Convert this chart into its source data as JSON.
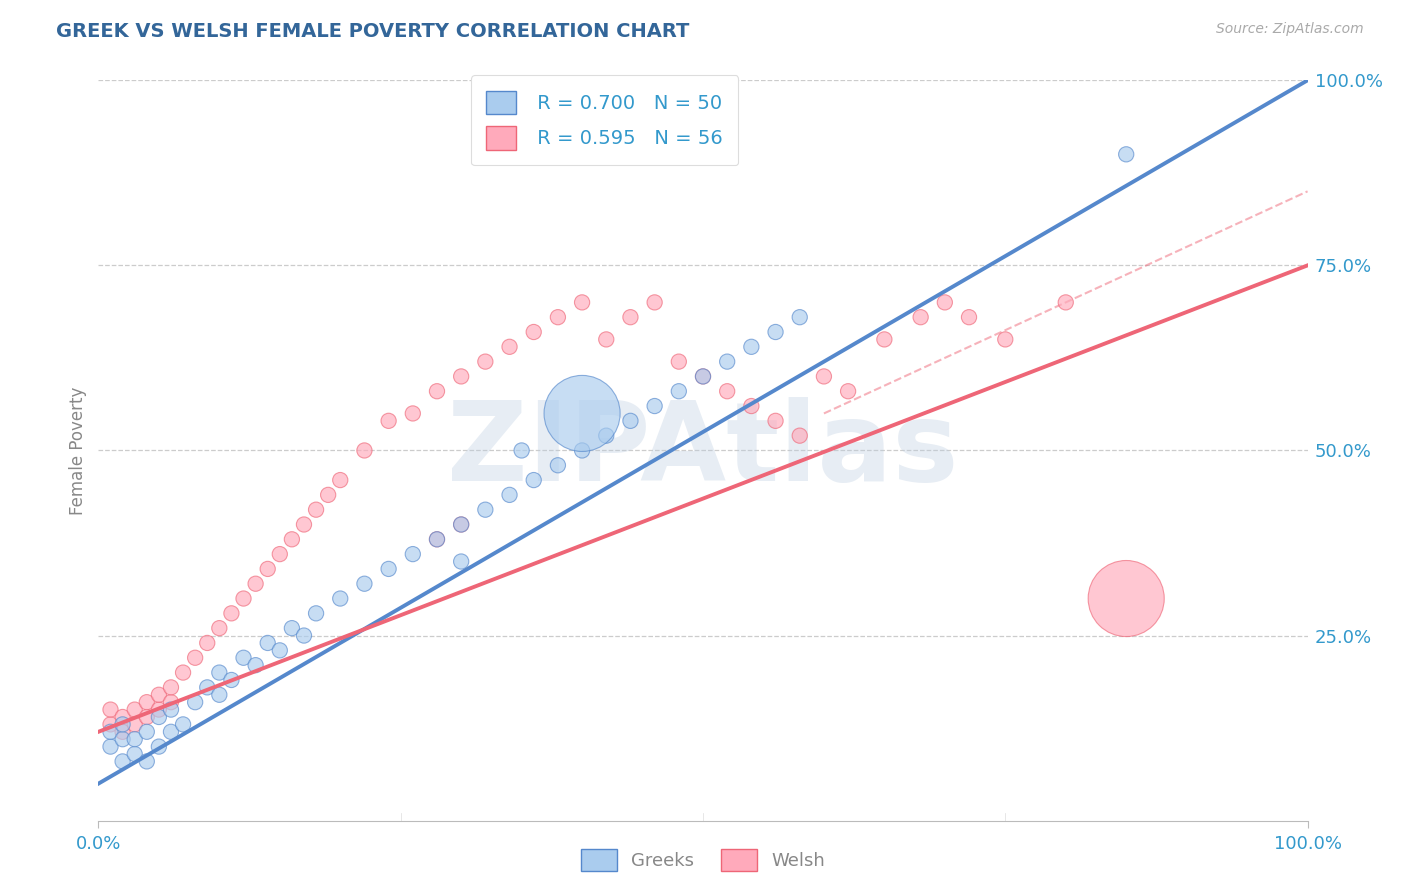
{
  "title": "GREEK VS WELSH FEMALE POVERTY CORRELATION CHART",
  "source": "Source: ZipAtlas.com",
  "ylabel": "Female Poverty",
  "watermark": "ZIPAtlas",
  "legend_blue_label": "Greeks",
  "legend_pink_label": "Welsh",
  "R_blue": 0.7,
  "N_blue": 50,
  "R_pink": 0.595,
  "N_pink": 56,
  "blue_color": "#5588CC",
  "pink_color": "#EE6677",
  "blue_fill": "#AACCEE",
  "pink_fill": "#FFAABB",
  "title_color": "#336699",
  "axis_label_color": "#888888",
  "tick_color": "#3399CC",
  "watermark_color": "#BBCCE0",
  "background_color": "#FFFFFF",
  "xlim": [
    0.0,
    1.0
  ],
  "ylim": [
    0.0,
    1.0
  ],
  "blue_line": [
    0.0,
    0.05,
    1.0,
    1.0
  ],
  "pink_line": [
    0.0,
    0.12,
    1.0,
    0.75
  ],
  "pink_dash_line": [
    0.6,
    0.55,
    1.0,
    0.85
  ],
  "greek_x": [
    0.01,
    0.01,
    0.02,
    0.02,
    0.02,
    0.03,
    0.03,
    0.04,
    0.04,
    0.05,
    0.05,
    0.06,
    0.06,
    0.07,
    0.08,
    0.09,
    0.1,
    0.1,
    0.11,
    0.12,
    0.13,
    0.14,
    0.15,
    0.16,
    0.17,
    0.18,
    0.2,
    0.22,
    0.24,
    0.26,
    0.28,
    0.3,
    0.32,
    0.34,
    0.36,
    0.38,
    0.4,
    0.42,
    0.44,
    0.46,
    0.48,
    0.5,
    0.52,
    0.54,
    0.56,
    0.58,
    0.85,
    0.3,
    0.35,
    0.4
  ],
  "greek_y": [
    0.1,
    0.12,
    0.08,
    0.11,
    0.13,
    0.09,
    0.11,
    0.08,
    0.12,
    0.1,
    0.14,
    0.12,
    0.15,
    0.13,
    0.16,
    0.18,
    0.17,
    0.2,
    0.19,
    0.22,
    0.21,
    0.24,
    0.23,
    0.26,
    0.25,
    0.28,
    0.3,
    0.32,
    0.34,
    0.36,
    0.38,
    0.4,
    0.42,
    0.44,
    0.46,
    0.48,
    0.5,
    0.52,
    0.54,
    0.56,
    0.58,
    0.6,
    0.62,
    0.64,
    0.66,
    0.68,
    0.9,
    0.35,
    0.5,
    0.55
  ],
  "greek_size": [
    120,
    120,
    120,
    120,
    120,
    120,
    120,
    120,
    120,
    120,
    120,
    120,
    120,
    120,
    120,
    120,
    120,
    120,
    120,
    120,
    120,
    120,
    120,
    120,
    120,
    120,
    120,
    120,
    120,
    120,
    120,
    120,
    120,
    120,
    120,
    120,
    120,
    120,
    120,
    120,
    120,
    120,
    120,
    120,
    120,
    120,
    120,
    120,
    120,
    3000
  ],
  "welsh_x": [
    0.01,
    0.01,
    0.02,
    0.02,
    0.03,
    0.03,
    0.04,
    0.04,
    0.05,
    0.05,
    0.06,
    0.06,
    0.07,
    0.08,
    0.09,
    0.1,
    0.11,
    0.12,
    0.13,
    0.14,
    0.15,
    0.16,
    0.17,
    0.18,
    0.19,
    0.2,
    0.22,
    0.24,
    0.26,
    0.28,
    0.3,
    0.32,
    0.34,
    0.36,
    0.38,
    0.4,
    0.42,
    0.44,
    0.46,
    0.48,
    0.5,
    0.52,
    0.54,
    0.56,
    0.58,
    0.6,
    0.62,
    0.65,
    0.68,
    0.7,
    0.72,
    0.75,
    0.8,
    0.28,
    0.3,
    0.85
  ],
  "welsh_y": [
    0.13,
    0.15,
    0.12,
    0.14,
    0.13,
    0.15,
    0.14,
    0.16,
    0.15,
    0.17,
    0.16,
    0.18,
    0.2,
    0.22,
    0.24,
    0.26,
    0.28,
    0.3,
    0.32,
    0.34,
    0.36,
    0.38,
    0.4,
    0.42,
    0.44,
    0.46,
    0.5,
    0.54,
    0.55,
    0.58,
    0.6,
    0.62,
    0.64,
    0.66,
    0.68,
    0.7,
    0.65,
    0.68,
    0.7,
    0.62,
    0.6,
    0.58,
    0.56,
    0.54,
    0.52,
    0.6,
    0.58,
    0.65,
    0.68,
    0.7,
    0.68,
    0.65,
    0.7,
    0.38,
    0.4,
    0.3
  ],
  "welsh_size": [
    120,
    120,
    120,
    120,
    120,
    120,
    120,
    120,
    120,
    120,
    120,
    120,
    120,
    120,
    120,
    120,
    120,
    120,
    120,
    120,
    120,
    120,
    120,
    120,
    120,
    120,
    120,
    120,
    120,
    120,
    120,
    120,
    120,
    120,
    120,
    120,
    120,
    120,
    120,
    120,
    120,
    120,
    120,
    120,
    120,
    120,
    120,
    120,
    120,
    120,
    120,
    120,
    120,
    120,
    120,
    3000
  ]
}
